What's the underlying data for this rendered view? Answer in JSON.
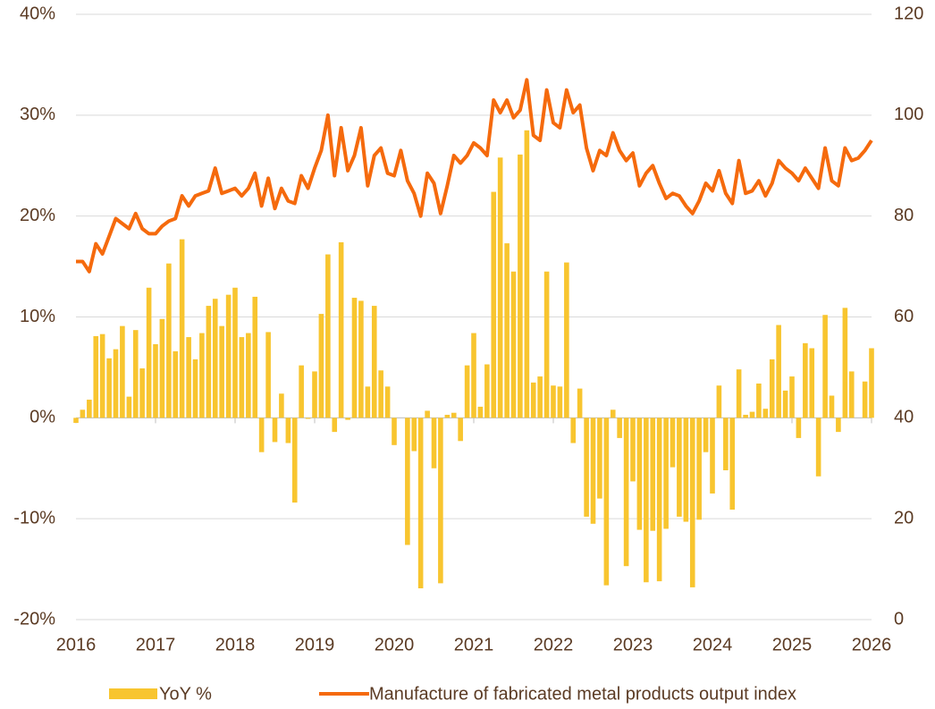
{
  "chart_data": {
    "type": "combo",
    "x": [
      2016,
      2016.083,
      2016.167,
      2016.25,
      2016.333,
      2016.417,
      2016.5,
      2016.583,
      2016.667,
      2016.75,
      2016.833,
      2016.917,
      2017,
      2017.083,
      2017.167,
      2017.25,
      2017.333,
      2017.417,
      2017.5,
      2017.583,
      2017.667,
      2017.75,
      2017.833,
      2017.917,
      2018,
      2018.083,
      2018.167,
      2018.25,
      2018.333,
      2018.417,
      2018.5,
      2018.583,
      2018.667,
      2018.75,
      2018.833,
      2018.917,
      2019,
      2019.083,
      2019.167,
      2019.25,
      2019.333,
      2019.417,
      2019.5,
      2019.583,
      2019.667,
      2019.75,
      2019.833,
      2019.917,
      2020,
      2020.083,
      2020.167,
      2020.25,
      2020.333,
      2020.417,
      2020.5,
      2020.583,
      2020.667,
      2020.75,
      2020.833,
      2020.917,
      2021,
      2021.083,
      2021.167,
      2021.25,
      2021.333,
      2021.417,
      2021.5,
      2021.583,
      2021.667,
      2021.75,
      2021.833,
      2021.917,
      2022,
      2022.083,
      2022.167,
      2022.25,
      2022.333,
      2022.417,
      2022.5,
      2022.583,
      2022.667,
      2022.75,
      2022.833,
      2022.917,
      2023,
      2023.083,
      2023.167,
      2023.25,
      2023.333,
      2023.417,
      2023.5,
      2023.583,
      2023.667,
      2023.75,
      2023.833,
      2023.917,
      2024,
      2024.083,
      2024.167,
      2024.25,
      2024.333,
      2024.417,
      2024.5,
      2024.583,
      2024.667,
      2024.75,
      2024.833,
      2024.917,
      2025,
      2025.083,
      2025.167,
      2025.25,
      2025.333,
      2025.417,
      2025.5,
      2025.583,
      2025.667,
      2025.75,
      2025.833,
      2025.917,
      2026
    ],
    "series": [
      {
        "name": "YoY %",
        "type": "bar",
        "color": "#f8c52f",
        "values": [
          -0.5,
          0.8,
          1.8,
          8.1,
          8.3,
          5.9,
          6.8,
          9.1,
          2.1,
          8.7,
          4.9,
          12.9,
          7.3,
          9.8,
          15.3,
          6.6,
          17.7,
          8.0,
          5.8,
          8.4,
          11.1,
          11.8,
          9.1,
          12.2,
          12.9,
          8.0,
          8.4,
          12.0,
          -3.4,
          8.5,
          -2.4,
          2.4,
          -2.5,
          -8.4,
          5.2,
          -0.1,
          4.6,
          10.3,
          16.2,
          -1.4,
          17.4,
          -0.2,
          11.9,
          11.6,
          3.1,
          11.1,
          4.7,
          3.1,
          -2.7,
          0,
          -12.6,
          -3.3,
          -16.9,
          0.7,
          -5.0,
          -16.4,
          0.3,
          0.5,
          -2.3,
          5.2,
          8.4,
          1.1,
          5.3,
          22.4,
          25.8,
          17.3,
          14.5,
          26.1,
          28.5,
          3.5,
          4.1,
          14.5,
          3.2,
          3.1,
          15.4,
          -2.5,
          2.9,
          -9.8,
          -10.5,
          -8.0,
          -16.6,
          0.8,
          -2.0,
          -14.7,
          -6.3,
          -11.1,
          -16.3,
          -11.2,
          -16.2,
          -11.0,
          -4.9,
          -9.8,
          -10.3,
          -16.8,
          -10.1,
          -3.4,
          -7.5,
          3.2,
          -5.2,
          -9.1,
          4.8,
          0.3,
          0.6,
          3.4,
          0.9,
          5.8,
          9.2,
          2.7,
          4.1,
          -2.0,
          7.4,
          6.9,
          -5.8,
          10.2,
          2.2,
          -1.4,
          10.9,
          4.6,
          0,
          3.6,
          6.9
        ]
      },
      {
        "name": "Manufacture of fabricated metal products output index",
        "type": "line",
        "axis": "y2",
        "color": "#f56a0d",
        "values": [
          71,
          71,
          69,
          74.5,
          72.5,
          76,
          79.5,
          78.5,
          77.5,
          80.5,
          77.5,
          76.5,
          76.5,
          78,
          79,
          79.5,
          84,
          82,
          84,
          84.5,
          85,
          89.5,
          84.5,
          85,
          85.5,
          84,
          85.5,
          88.5,
          82,
          87.5,
          81.5,
          85.5,
          83,
          82.5,
          88,
          85.5,
          89.5,
          93,
          100,
          88,
          97.5,
          89,
          92,
          97.5,
          86,
          92,
          93.5,
          88.5,
          88,
          93,
          87,
          84.5,
          80,
          88.5,
          86.5,
          80.5,
          86,
          92,
          90.5,
          92,
          94.5,
          93.5,
          92,
          103,
          100.5,
          103,
          99.5,
          101,
          107,
          96,
          95,
          105,
          98.5,
          97.5,
          105,
          100.5,
          102,
          93.5,
          89,
          93,
          92,
          96.5,
          93,
          91,
          92.5,
          86,
          88.5,
          90,
          86.5,
          83.5,
          84.5,
          84,
          82,
          80.5,
          83,
          86.5,
          85,
          89,
          84.5,
          82.5,
          91,
          84.5,
          85,
          87,
          84,
          86.5,
          91,
          89.5,
          88.5,
          87,
          89.5,
          87.5,
          85.5,
          93.5,
          87,
          86,
          93.5,
          91,
          91.5,
          93,
          95
        ]
      }
    ],
    "xlim": [
      2016,
      2026
    ],
    "xticks": [
      2016,
      2017,
      2018,
      2019,
      2020,
      2021,
      2022,
      2023,
      2024,
      2025,
      2026
    ],
    "ylim": [
      -20,
      40
    ],
    "yticks": [
      {
        "value": -20,
        "label": "-20%"
      },
      {
        "value": -10,
        "label": "-10%"
      },
      {
        "value": 0,
        "label": "0%"
      },
      {
        "value": 10,
        "label": "10%"
      },
      {
        "value": 20,
        "label": "20%"
      },
      {
        "value": 30,
        "label": "30%"
      },
      {
        "value": 40,
        "label": "40%"
      }
    ],
    "y2lim": [
      0,
      120
    ],
    "y2ticks": [
      0,
      20,
      40,
      60,
      80,
      100,
      120
    ],
    "grid": true,
    "legend": "bottom"
  }
}
